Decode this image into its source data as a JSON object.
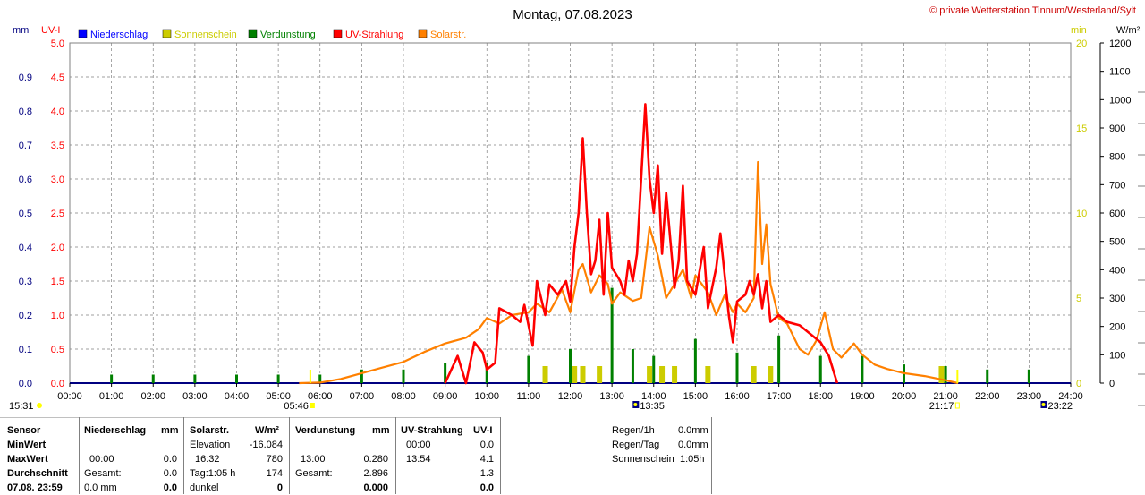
{
  "header": {
    "title": "Montag, 07.08.2023",
    "copyright": "© private Wetterstation Tinnum/Westerland/Sylt",
    "unit_mm": "mm",
    "unit_uvi": "UV-I",
    "unit_min": "min",
    "unit_wm2": "W/m²"
  },
  "colors": {
    "niederschlag": "#0000ff",
    "sonnenschein": "#cccc00",
    "verdunstung": "#008000",
    "uv": "#ff0000",
    "solar": "#ff8000",
    "axis_mm": "#000080",
    "axis_uv": "#ff0000",
    "axis_min": "#cccc00",
    "grid": "#808080"
  },
  "legend": [
    {
      "label": "Niederschlag",
      "color": "#0000ff"
    },
    {
      "label": "Sonnenschein",
      "color": "#cccc00"
    },
    {
      "label": "Verdunstung",
      "color": "#008000"
    },
    {
      "label": "UV-Strahlung",
      "color": "#ff0000"
    },
    {
      "label": "Solarstr.",
      "color": "#ff8000"
    }
  ],
  "chart_data": {
    "type": "line",
    "x_ticks": [
      "00:00",
      "01:00",
      "02:00",
      "03:00",
      "04:00",
      "05:00",
      "06:00",
      "07:00",
      "08:00",
      "09:00",
      "10:00",
      "11:00",
      "12:00",
      "13:00",
      "14:00",
      "15:00",
      "16:00",
      "17:00",
      "18:00",
      "19:00",
      "20:00",
      "21:00",
      "22:00",
      "23:00",
      "24:00"
    ],
    "axes": {
      "mm": {
        "min": 0,
        "max": 1.0,
        "ticks": [
          "0.0",
          "0.1",
          "0.2",
          "0.3",
          "0.4",
          "0.5",
          "0.6",
          "0.7",
          "0.8",
          "0.9"
        ]
      },
      "uvi": {
        "min": 0,
        "max": 5.0,
        "ticks": [
          "0.0",
          "0.5",
          "1.0",
          "1.5",
          "2.0",
          "2.5",
          "3.0",
          "3.5",
          "4.0",
          "4.5",
          "5.0"
        ]
      },
      "sunshine_min": {
        "min": 0,
        "max": 20,
        "ticks": [
          "0",
          "5",
          "10",
          "15",
          "20"
        ]
      },
      "solar_wm2": {
        "min": 0,
        "max": 1200,
        "ticks": [
          "0",
          "100",
          "200",
          "300",
          "400",
          "500",
          "600",
          "700",
          "800",
          "900",
          "1000",
          "1100",
          "1200"
        ]
      }
    },
    "markers": {
      "sunrise_bottom": "05:46",
      "sunset_bottom": "21:17",
      "day_length": "15:31",
      "solar_noon": "13:35",
      "moonrise": "23:22"
    },
    "series": [
      {
        "name": "UV-Strahlung",
        "axis": "uvi",
        "points": [
          [
            9.0,
            0.0
          ],
          [
            9.3,
            0.4
          ],
          [
            9.5,
            0.0
          ],
          [
            9.7,
            0.6
          ],
          [
            9.9,
            0.45
          ],
          [
            10.0,
            0.2
          ],
          [
            10.2,
            0.3
          ],
          [
            10.3,
            1.1
          ],
          [
            10.6,
            1.0
          ],
          [
            10.8,
            0.9
          ],
          [
            10.9,
            1.15
          ],
          [
            11.1,
            0.55
          ],
          [
            11.2,
            1.5
          ],
          [
            11.4,
            1.0
          ],
          [
            11.5,
            1.45
          ],
          [
            11.7,
            1.3
          ],
          [
            11.9,
            1.5
          ],
          [
            12.0,
            1.2
          ],
          [
            12.1,
            2.0
          ],
          [
            12.2,
            2.5
          ],
          [
            12.3,
            3.6
          ],
          [
            12.4,
            2.5
          ],
          [
            12.5,
            1.6
          ],
          [
            12.6,
            1.8
          ],
          [
            12.7,
            2.4
          ],
          [
            12.8,
            1.3
          ],
          [
            12.9,
            2.5
          ],
          [
            13.0,
            1.7
          ],
          [
            13.2,
            1.5
          ],
          [
            13.3,
            1.3
          ],
          [
            13.4,
            1.8
          ],
          [
            13.5,
            1.5
          ],
          [
            13.6,
            1.9
          ],
          [
            13.8,
            4.1
          ],
          [
            13.9,
            3.0
          ],
          [
            14.0,
            2.5
          ],
          [
            14.1,
            3.2
          ],
          [
            14.2,
            1.9
          ],
          [
            14.3,
            2.8
          ],
          [
            14.5,
            1.4
          ],
          [
            14.6,
            1.8
          ],
          [
            14.7,
            2.9
          ],
          [
            14.8,
            1.5
          ],
          [
            15.0,
            1.3
          ],
          [
            15.2,
            2.0
          ],
          [
            15.3,
            1.1
          ],
          [
            15.5,
            1.7
          ],
          [
            15.6,
            2.2
          ],
          [
            15.8,
            1.0
          ],
          [
            15.9,
            0.6
          ],
          [
            16.0,
            1.2
          ],
          [
            16.2,
            1.3
          ],
          [
            16.3,
            1.5
          ],
          [
            16.4,
            1.3
          ],
          [
            16.5,
            1.6
          ],
          [
            16.6,
            1.1
          ],
          [
            16.7,
            1.5
          ],
          [
            16.8,
            0.9
          ],
          [
            17.0,
            1.0
          ],
          [
            17.2,
            0.9
          ],
          [
            17.5,
            0.85
          ],
          [
            17.8,
            0.7
          ],
          [
            18.0,
            0.6
          ],
          [
            18.2,
            0.4
          ],
          [
            18.3,
            0.2
          ],
          [
            18.4,
            0.0
          ]
        ]
      },
      {
        "name": "Solarstr.",
        "axis": "solar_wm2",
        "points": [
          [
            5.5,
            0
          ],
          [
            6.0,
            2
          ],
          [
            6.5,
            15
          ],
          [
            7.0,
            35
          ],
          [
            7.5,
            55
          ],
          [
            8.0,
            75
          ],
          [
            8.5,
            110
          ],
          [
            9.0,
            140
          ],
          [
            9.5,
            160
          ],
          [
            9.8,
            190
          ],
          [
            10.0,
            230
          ],
          [
            10.3,
            210
          ],
          [
            10.6,
            240
          ],
          [
            11.0,
            250
          ],
          [
            11.2,
            280
          ],
          [
            11.5,
            250
          ],
          [
            11.8,
            330
          ],
          [
            12.0,
            250
          ],
          [
            12.2,
            400
          ],
          [
            12.3,
            420
          ],
          [
            12.5,
            320
          ],
          [
            12.7,
            380
          ],
          [
            12.9,
            350
          ],
          [
            13.0,
            280
          ],
          [
            13.2,
            320
          ],
          [
            13.5,
            290
          ],
          [
            13.7,
            300
          ],
          [
            13.9,
            550
          ],
          [
            14.1,
            450
          ],
          [
            14.3,
            300
          ],
          [
            14.5,
            350
          ],
          [
            14.7,
            400
          ],
          [
            14.9,
            300
          ],
          [
            15.0,
            380
          ],
          [
            15.3,
            320
          ],
          [
            15.5,
            240
          ],
          [
            15.7,
            310
          ],
          [
            15.9,
            250
          ],
          [
            16.0,
            280
          ],
          [
            16.2,
            250
          ],
          [
            16.4,
            300
          ],
          [
            16.5,
            780
          ],
          [
            16.6,
            420
          ],
          [
            16.7,
            560
          ],
          [
            16.8,
            350
          ],
          [
            17.0,
            230
          ],
          [
            17.2,
            210
          ],
          [
            17.5,
            120
          ],
          [
            17.7,
            100
          ],
          [
            17.9,
            150
          ],
          [
            18.1,
            250
          ],
          [
            18.3,
            120
          ],
          [
            18.5,
            90
          ],
          [
            18.8,
            140
          ],
          [
            19.0,
            100
          ],
          [
            19.3,
            65
          ],
          [
            19.6,
            50
          ],
          [
            20.0,
            35
          ],
          [
            20.5,
            25
          ],
          [
            21.0,
            10
          ],
          [
            21.3,
            0
          ]
        ]
      },
      {
        "name": "Verdunstung",
        "axis": "mm",
        "points": [
          [
            1.0,
            0.025
          ],
          [
            2.0,
            0.025
          ],
          [
            3.0,
            0.025
          ],
          [
            4.0,
            0.025
          ],
          [
            5.0,
            0.025
          ],
          [
            6.0,
            0.025
          ],
          [
            7.0,
            0.04
          ],
          [
            8.0,
            0.04
          ],
          [
            9.0,
            0.06
          ],
          [
            10.0,
            0.06
          ],
          [
            11.0,
            0.08
          ],
          [
            12.0,
            0.1
          ],
          [
            13.0,
            0.28
          ],
          [
            13.5,
            0.1
          ],
          [
            14.0,
            0.08
          ],
          [
            15.0,
            0.13
          ],
          [
            16.0,
            0.09
          ],
          [
            17.0,
            0.14
          ],
          [
            18.0,
            0.08
          ],
          [
            19.0,
            0.08
          ],
          [
            20.0,
            0.055
          ],
          [
            21.0,
            0.05
          ],
          [
            22.0,
            0.04
          ],
          [
            23.0,
            0.04
          ]
        ]
      },
      {
        "name": "Sonnenschein",
        "axis": "sunshine_min",
        "points": [
          [
            11.4,
            1.0
          ],
          [
            12.1,
            1.0
          ],
          [
            12.3,
            1.0
          ],
          [
            12.7,
            1.0
          ],
          [
            13.9,
            1.0
          ],
          [
            14.2,
            1.0
          ],
          [
            14.5,
            1.0
          ],
          [
            15.3,
            1.0
          ],
          [
            16.4,
            1.0
          ],
          [
            16.8,
            1.0
          ],
          [
            20.9,
            1.0
          ]
        ]
      }
    ]
  },
  "stats": {
    "header": {
      "sensor": "Sensor",
      "niederschlag": "Niederschlag",
      "mm1": "mm",
      "solarstr": "Solarstr.",
      "wm2": "W/m²",
      "verdunstung": "Verdunstung",
      "mm2": "mm",
      "uv": "UV-Strahlung",
      "uvi": "UV-I"
    },
    "rows": {
      "minwert": "MinWert",
      "maxwert": "MaxWert",
      "durchschnitt": "Durchschnitt",
      "date": "07.08. 23:59"
    },
    "niederschlag": {
      "max_time": "00:00",
      "max_val": "0.0",
      "gesamt_label": "Gesamt:",
      "gesamt_val": "0.0",
      "last_val": "0.0 mm",
      "last_bold": "0.0"
    },
    "solar": {
      "elev_label": "Elevation",
      "elev_val": "-16.084",
      "max_time": "16:32",
      "max_val": "780",
      "tag_label": "Tag:1:05 h",
      "tag_val": "174",
      "dunkel": "dunkel",
      "dunkel_val": "0"
    },
    "verdunstung": {
      "max_time": "13:00",
      "max_val": "0.280",
      "gesamt_label": "Gesamt:",
      "gesamt_val": "2.896",
      "last_bold": "0.000"
    },
    "uv": {
      "min_time": "00:00",
      "min_val": "0.0",
      "max_time": "13:54",
      "max_val": "4.1",
      "avg_val": "1.3",
      "last_bold": "0.0"
    },
    "regen": {
      "h_label": "Regen/1h",
      "h_val": "0.0mm",
      "tag_label": "Regen/Tag",
      "tag_val": "0.0mm",
      "sun_label": "Sonnenschein",
      "sun_val": "1:05h"
    }
  }
}
